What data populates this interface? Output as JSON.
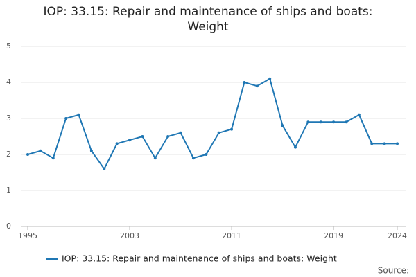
{
  "chart_data": {
    "type": "line",
    "title": "IOP: 33.15: Repair and maintenance of ships and boats: Weight",
    "x": [
      1995,
      1996,
      1997,
      1998,
      1999,
      2000,
      2001,
      2002,
      2003,
      2004,
      2005,
      2006,
      2007,
      2008,
      2009,
      2010,
      2011,
      2012,
      2013,
      2014,
      2015,
      2016,
      2017,
      2018,
      2019,
      2020,
      2021,
      2022,
      2023,
      2024
    ],
    "series": [
      {
        "name": "IOP: 33.15: Repair and maintenance of ships and boats: Weight",
        "color": "#1f77b4",
        "values": [
          2.0,
          2.1,
          1.9,
          3.0,
          3.1,
          2.1,
          1.6,
          2.3,
          2.4,
          2.5,
          1.9,
          2.5,
          2.6,
          1.9,
          2.0,
          2.6,
          2.7,
          4.0,
          3.9,
          4.1,
          2.8,
          2.2,
          2.9,
          2.9,
          2.9,
          2.9,
          3.1,
          2.3,
          2.3,
          2.3
        ]
      }
    ],
    "xlim": [
      1995,
      2024
    ],
    "xticks": [
      1995,
      2003,
      2011,
      2019,
      2024
    ],
    "ylim": [
      0,
      5
    ],
    "yticks": [
      0,
      1,
      2,
      3,
      4,
      5
    ],
    "grid": true,
    "source": "Source:"
  }
}
